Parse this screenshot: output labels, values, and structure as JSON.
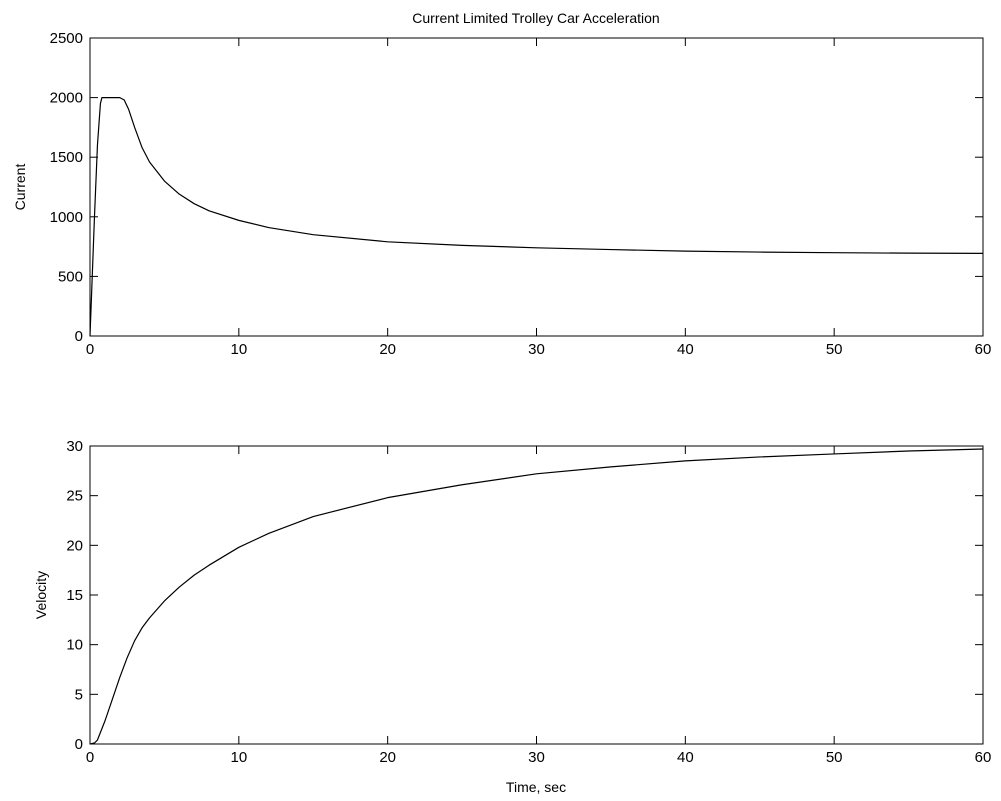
{
  "figure": {
    "title": "Current Limited Trolley Car Acceleration",
    "background_color": "#ffffff",
    "line_color": "#000000",
    "axes_color": "#000000"
  },
  "chart_data": [
    {
      "type": "line",
      "title": "Current Limited Trolley Car Acceleration",
      "xlabel": "",
      "ylabel": "Current",
      "xlim": [
        0,
        60
      ],
      "ylim": [
        0,
        2500
      ],
      "xticks": [
        0,
        10,
        20,
        30,
        40,
        50,
        60
      ],
      "xtick_labels": [
        "0",
        "10",
        "20",
        "30",
        "40",
        "50",
        "60"
      ],
      "yticks": [
        0,
        500,
        1000,
        1500,
        2000,
        2500
      ],
      "ytick_labels": [
        "0",
        "500",
        "1000",
        "1500",
        "2000",
        "2500"
      ],
      "grid": false,
      "legend": "none",
      "series": [
        {
          "color": "#000000",
          "x": [
            0,
            0.3,
            0.5,
            0.7,
            0.8,
            1.0,
            1.5,
            2.0,
            2.3,
            2.6,
            3.0,
            3.5,
            4.0,
            5.0,
            6.0,
            7.0,
            8.0,
            10.0,
            12.0,
            15.0,
            20.0,
            25.0,
            30.0,
            35.0,
            40.0,
            45.0,
            50.0,
            55.0,
            60.0
          ],
          "y": [
            0,
            1000,
            1600,
            1950,
            2000,
            2000,
            2000,
            2000,
            1980,
            1900,
            1750,
            1580,
            1460,
            1300,
            1190,
            1110,
            1050,
            970,
            910,
            850,
            790,
            760,
            740,
            725,
            712,
            704,
            699,
            695,
            693
          ]
        }
      ]
    },
    {
      "type": "line",
      "title": "",
      "xlabel": "Time, sec",
      "ylabel": "Velocity",
      "xlim": [
        0,
        60
      ],
      "ylim": [
        0,
        30
      ],
      "xticks": [
        0,
        10,
        20,
        30,
        40,
        50,
        60
      ],
      "xtick_labels": [
        "0",
        "10",
        "20",
        "30",
        "40",
        "50",
        "60"
      ],
      "yticks": [
        0,
        5,
        10,
        15,
        20,
        25,
        30
      ],
      "ytick_labels": [
        "0",
        "5",
        "10",
        "15",
        "20",
        "25",
        "30"
      ],
      "grid": false,
      "legend": "none",
      "series": [
        {
          "color": "#000000",
          "x": [
            0,
            0.3,
            0.5,
            1.0,
            1.5,
            2.0,
            2.5,
            3.0,
            3.5,
            4.0,
            5.0,
            6.0,
            7.0,
            8.0,
            10.0,
            12.0,
            15.0,
            20.0,
            25.0,
            30.0,
            35.0,
            40.0,
            45.0,
            50.0,
            55.0,
            60.0
          ],
          "y": [
            0,
            0.1,
            0.4,
            2.3,
            4.5,
            6.7,
            8.7,
            10.4,
            11.7,
            12.7,
            14.4,
            15.8,
            17.0,
            18.0,
            19.8,
            21.2,
            22.9,
            24.8,
            26.1,
            27.2,
            27.9,
            28.5,
            28.9,
            29.2,
            29.5,
            29.7
          ]
        }
      ]
    }
  ]
}
